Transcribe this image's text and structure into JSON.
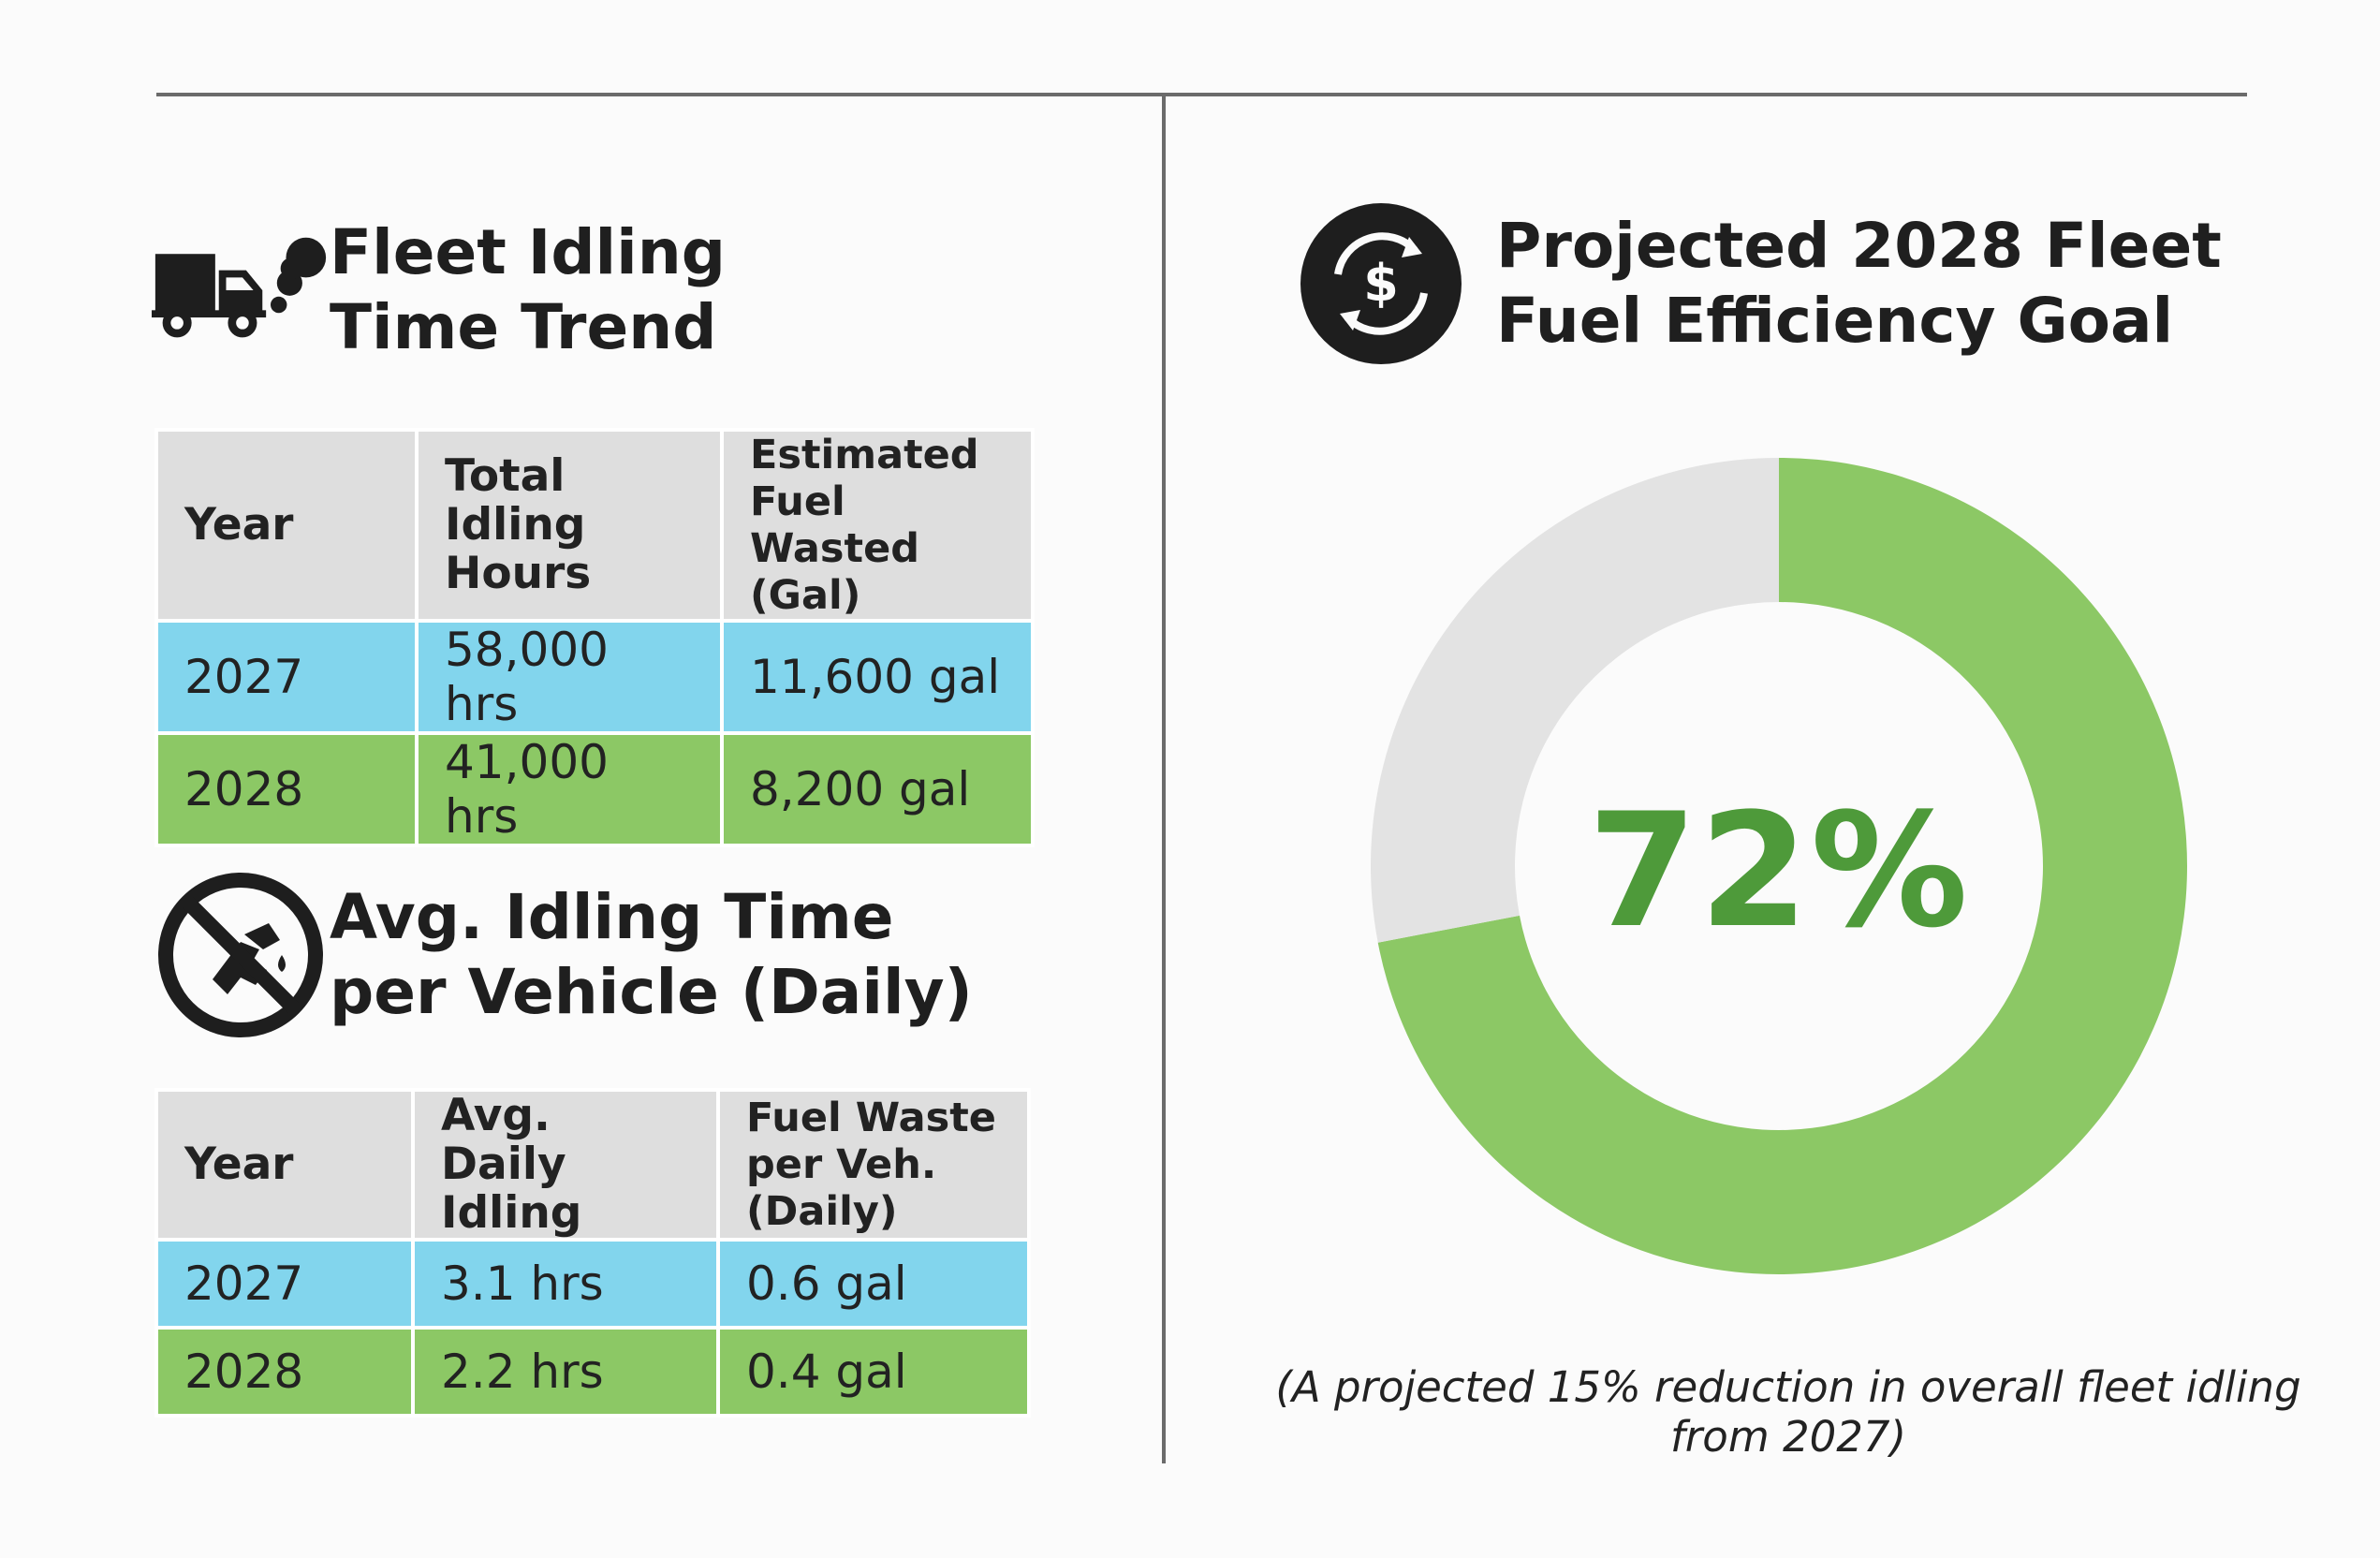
{
  "fleet_section": {
    "title_line1": "Fleet Idling",
    "title_line2": "Time Trend",
    "icon": "truck-exhaust-icon",
    "table": {
      "headers": [
        "Year",
        "Total Idling\nHours",
        "Estimated Fuel\nWasted (Gal)"
      ],
      "rows": [
        [
          "2027",
          "58,000 hrs",
          "11,600 gal"
        ],
        [
          "2028",
          "41,000 hrs",
          "8,200 gal"
        ]
      ]
    }
  },
  "vehicle_section": {
    "title_line1": "Avg. Idling Time",
    "title_line2": "per Vehicle (Daily)",
    "icon": "no-fuel-pump-icon",
    "table": {
      "headers": [
        "Year",
        "Avg. Daily\nIdling",
        "Fuel Waste\nper Veh. (Daily)"
      ],
      "rows": [
        [
          "2027",
          "3.1 hrs",
          "0.6 gal"
        ],
        [
          "2028",
          "2.2 hrs",
          "0.4 gal"
        ]
      ]
    }
  },
  "goal_section": {
    "title_line1": "Projected 2028 Fleet",
    "title_line2": "Fuel Efficiency Goal",
    "icon": "dollar-cycle-icon",
    "center_label": "72%",
    "footnote": "(A projected 15% reduction in overall fleet idling from 2027)"
  },
  "colors": {
    "row_2027": "#82d5ed",
    "row_2028": "#8cc865",
    "header": "#dedede",
    "donut_fill": "#8cc865",
    "donut_track": "#e3e3e3",
    "donut_text": "#4e9a3a"
  },
  "chart_data": {
    "type": "pie",
    "values": [
      72,
      28
    ],
    "colors": [
      "#8cc865",
      "#e3e3e3"
    ],
    "center_text": "72%",
    "start": "top",
    "direction": "clockwise"
  }
}
